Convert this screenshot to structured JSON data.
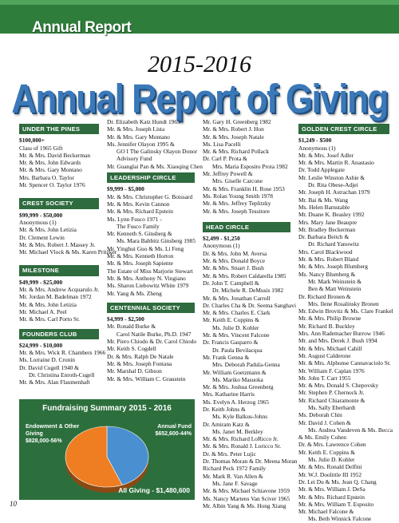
{
  "header": {
    "section_tag": "Annual Report",
    "year": "2015-2016",
    "title": "Annual Report of Giving"
  },
  "page_number": "10",
  "colors": {
    "header_green": "#2f7d3a",
    "section_green": "#2e6b3e",
    "title_blue": "#3a78b8",
    "pie_blue": "#4a8fd0",
    "pie_orange": "#ef7d22"
  },
  "col1": {
    "under_pines": {
      "title": "UNDER THE PINES",
      "tier": "$100,000+",
      "names": [
        "Class of 1965 Gift",
        "Mr. & Mrs. David Beckerman",
        "Mr. & Mrs. John Edwards",
        "Mr. & Mrs. Gary Montano",
        "Mrs. Barbara O. Taylor",
        "Mr. Spencer O. Taylor 1976"
      ]
    },
    "crest": {
      "title": "CREST SOCIETY",
      "tier": "$99,999 - $50,000",
      "names": [
        "Anonymous (1)",
        "Mr. & Mrs. John Letizia",
        "Dr. Clement Lewin",
        "Mr. & Mrs. Robert J. Massey Jr.",
        "Mr. Michael Vlock & Ms. Karen Pritzker"
      ]
    },
    "milestone": {
      "title": "MILESTONE",
      "tier": "$49,999 - $25,000",
      "names": [
        "Mr. & Mrs. Andrew Acquarulo Jr.",
        "Mr. Jordan M. Badelman 1972",
        "Mr. & Mrs. John Letizia",
        "Mr. Michael A. Peel",
        "Mr. & Mrs. Carl Porto Sr."
      ]
    },
    "founders": {
      "title": "FOUNDERS CLUB",
      "tier": "$24,999 - $10,000",
      "names": [
        "Mr. & Mrs. Wick R. Chambers 1966",
        "Ms. Lorraine D. Cronin",
        "Dr. David Cugell 1940 &",
        "Dr. Christina Enroth-Cugell",
        "Mr. & Mrs. Alan Flaumenhaft"
      ]
    }
  },
  "col2": {
    "top_names": [
      "Dr. Elizabeth Katz Hundt 1965",
      "Mr. & Mrs. Joseph Lista",
      "Mr. & Mrs. Gary Montano",
      "Ms. Jennifer Olayon 1995 &",
      "GO I The Galinsky Olayon Donor",
      "Advisory Fund",
      "Mr. Guanglai Pan & Ms. Xiaoqing Chen"
    ],
    "leadership": {
      "title": "LEADERSHIP CIRCLE",
      "tier": "$9,999 - $5,000",
      "names": [
        "Mr. & Mrs. Christopher G. Boissard",
        "Mr. & Mrs. Kevin Cannon",
        "Mr. & Mrs. Richard Epstein",
        "Ms. Lynn Fusco 1971 -",
        "The Fusco Family",
        "Mr. Kenneth S. Ginsberg &",
        "Ms. Mara Babbitz Ginsberg 1985",
        "Mr. Yinghui Guo & Ms. Li Feng",
        "Mr. & Mrs. Kenneth Horton",
        "Mr. & Mrs. Joseph Sapiente",
        "The Estate of Miss Marjorie Stewart",
        "Mr. & Mrs. Anthony N. Vingiano",
        "Ms. Sharon Liebowitz White 1979",
        "Mr. Yang & Ms. Zheng"
      ]
    },
    "centennial": {
      "title": "CENTENNIAL SOCIETY",
      "tier": "$4,999 - $2,500",
      "names": [
        "Mr. Ronald Burke &",
        "Carol Natile Burke, Ph.D. 1947",
        "Mr. Piero Chiodo & Dr. Carol Chiodo",
        "Mr. Keith S. Cogdell",
        "Dr. & Mrs. Ralph De Natale",
        "Mr. & Mrs. Joseph Fontana",
        "Mr. Marshal D. Gibson",
        "Mr. & Mrs. William C. Graustein"
      ]
    }
  },
  "col3": {
    "top_names": [
      "Mr. Gary H. Greenberg 1982",
      "Mr. & Mrs. Robert J. Hon",
      "Mr. & Mrs. Joseph Natale",
      "Ms. Lisa Pacelli",
      "Mr. & Mrs. Richard Pollack",
      "Dr. Carl P. Prota &",
      "Mrs. Maria Esposito Prota 1982",
      "Mr. Jeffrey Powell &",
      "Mrs. Giselle Carcone",
      "Mr. & Mrs. Franklin H. Rose 1953",
      "Ms. Rolan Young Smith 1978",
      "Mr. & Mrs. Jeffrey Teplitzky",
      "Mr. & Mrs. Joseph Tessitore"
    ],
    "head": {
      "title": "HEAD CIRCLE",
      "tier": "$2,499 - $1,250",
      "names": [
        "Anonymous (1)",
        "Dr. & Mrs. John M. Aversa",
        "Mr. & Mrs. Donald Boyce",
        "Mr. & Mrs. Stuart J. Bush",
        "Mr. & Mrs. Robert Caldarella 1985",
        "Dr. John T. Campbell &",
        "Dr. Michele R. DeMusis 1982",
        "Mr. & Mrs. Jonathan Carroll",
        "Dr. Charles Cha & Dr. Seema Sanghavi",
        "Mr. & Mrs. Charles E. Clark",
        "Mr. Keith E. Coppins &",
        "Ms. Julie D. Kohler",
        "Mr. & Mrs. Vincent Falcone",
        "Dr. Francis Gasparro &",
        "Dr. Paula Bevilacqua",
        "Mr. Frank Genna &",
        "Mrs. Deborah Padula-Genna",
        "Mr. William Goetzmann &",
        "Ms. Mariko Masuoka",
        "Mr. & Mrs. Joshua Greenberg",
        "Mrs. Katharine Harris",
        "Ms. Evelyn A. Herzog 1965",
        "Dr. Keith Johns &",
        "Ms. Kyle Balkus-Johns",
        "Dr. Amiram Katz &",
        "Ms. Janet M. Berkley",
        "Mr. & Mrs. Richard LoRicco Jr.",
        "Mr. & Mrs. Ronald J. Loricco Sr.",
        "Dr. & Mrs. Peter Lujic",
        "Dr. Thomas Moran & Dr. Meena Moran",
        "Richard Peck 1972 Family",
        "Mr. Mark R. Van Allen &",
        "Ms. Jane F. Savage",
        "Mr. & Mrs. Michael Schiavone 1959",
        "Ms. Nancy Martens Van Sciver 1965",
        "Mr. Albin Yang & Ms. Hong Xiang"
      ]
    }
  },
  "col4": {
    "golden": {
      "title": "GOLDEN CREST CIRCLE",
      "tier": "$1,249 - $500",
      "names": [
        "Anonymous (1)",
        "Mr. & Mrs. Josef Adler",
        "Mr. & Mrs. Martin R. Anastasio",
        "Dr. Todd Applegate",
        "Mr. Leslie Winston Ashie &",
        "Dr. Rita Obese-Adjei",
        "Mr. Joseph H. Astrachan 1979",
        "Mr. Bai & Ms. Wang",
        "Ms. Helen Barnstable",
        "Mr. Duane K. Beasley 1992",
        "Mrs. Mary Jane Beaupre",
        "Mr. Bradley Beckerman",
        "Dr. Barbara Beitch &",
        "Dr. Richard Yanowitz",
        "Mrs. Carol Blackwood",
        "Mr. & Mrs. Robert Bland",
        "Mr. & Mrs. Joseph Blumberg",
        "Ms. Nancy Blumberg &",
        "Mr. Mark Weinstein &",
        "Ben & Matt Weinstein",
        "Dr. Richard Bronen &",
        "Mrs. Ilene Rosalinsky Bronen",
        "Mr. Edwin Brovitz & Ms. Clare Frankel",
        "Mr. & Mrs. Philip Browne",
        "Mr. Richard B. Buckley",
        "Mrs. Ann Rademacher Burrow 1946",
        "Mr. and Mrs. Derek J. Bush 1994",
        "Mr. & Mrs. Michael Cahill",
        "Mr. August Calderone",
        "Mr. & Mrs. Alphonse Cannavaciolo Sr.",
        "Mr. William F. Caplan 1976",
        "Mr. John T. Carr 1955",
        "Mr. & Mrs. Donald S. Chepovsky",
        "Mr. Stephen P. Chernock Jr.",
        "Mr. Richard Chiaramonte &",
        "Ms. Sally Eberhardt",
        "Ms. Deborah Chin",
        "Mr. David J. Cohen &",
        "Ms. Andrea Vandeven & Ms. Becca",
        "& Ms. Emily Cohen",
        "Dr. & Mrs. Lawrence Cohen",
        "Mr. Keith E. Coppins &",
        "Ms. Julie D. Kohler",
        "Mr. & Mrs. Ronald Delfini",
        "Mr. W.J. Doolittle III 1952",
        "Dr. Lei Du & Ms. Jean Q. Chang",
        "Mr. & Mrs. William J. DeSa",
        "Mr. & Mrs. Richard Epstein",
        "Mr. & Mrs. William T. Esposito",
        "Mr. Michael Falcone &",
        "Ms. Beth Winnick Falcone"
      ]
    }
  },
  "chart_data": {
    "type": "pie",
    "title": "Fundraising Summary 2015 - 2016",
    "total_label": "All Giving - $1,480,600",
    "slices": [
      {
        "label": "Endowment & Other Giving",
        "amount": "$828,000-56%",
        "value": 56,
        "color": "#ef7d22"
      },
      {
        "label": "Annual Fund",
        "amount": "$652,600-44%",
        "value": 44,
        "color": "#4a8fd0"
      }
    ]
  }
}
